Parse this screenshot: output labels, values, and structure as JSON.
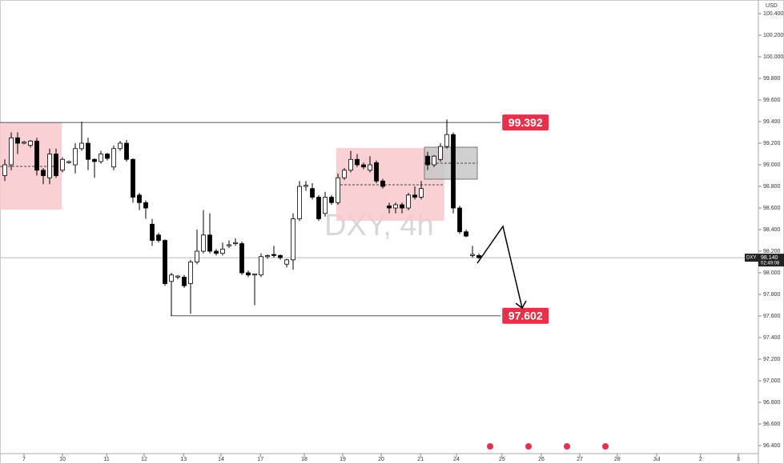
{
  "chart_data": {
    "type": "candlestick",
    "title": "DXY, 4h",
    "currency": "USD",
    "symbol": "DXY",
    "open": [
      98.9,
      99.0,
      99.25,
      99.2,
      99.18,
      99.22,
      98.95,
      98.88,
      99.1,
      98.95,
      99.02,
      99.0,
      99.15,
      99.2,
      99.05,
      99.03,
      99.1,
      98.98,
      99.15,
      99.2,
      99.05,
      98.72,
      98.65,
      98.45,
      98.35,
      98.3,
      97.92,
      97.96,
      97.96,
      97.9,
      98.1,
      98.2,
      98.35,
      98.2,
      98.18,
      98.25,
      98.27,
      98.27,
      98.0,
      97.98,
      97.98,
      98.15,
      98.17,
      98.16,
      98.08,
      98.12,
      98.5,
      98.8,
      98.78,
      98.7,
      98.55,
      98.7,
      98.65,
      98.88,
      98.95,
      99.05,
      99.0,
      98.95,
      99.02,
      98.85,
      98.62,
      98.6,
      98.63,
      98.6,
      98.72,
      98.7,
      99.08,
      99.0,
      99.05,
      99.17,
      99.28,
      98.6,
      98.38,
      98.16,
      98.16
    ],
    "high": [
      99.05,
      99.3,
      99.3,
      99.22,
      99.23,
      99.25,
      98.97,
      99.15,
      99.15,
      99.07,
      99.04,
      99.2,
      99.4,
      99.25,
      99.06,
      99.13,
      99.11,
      99.18,
      99.22,
      99.23,
      99.06,
      98.74,
      98.67,
      98.5,
      98.37,
      98.31,
      98.0,
      97.98,
      97.98,
      98.12,
      98.4,
      98.58,
      98.55,
      98.22,
      98.28,
      98.3,
      98.32,
      98.29,
      98.02,
      97.99,
      98.18,
      98.17,
      98.25,
      98.17,
      98.13,
      98.55,
      98.85,
      98.85,
      98.83,
      98.72,
      98.75,
      98.72,
      98.92,
      98.97,
      99.13,
      99.1,
      99.02,
      99.08,
      99.04,
      98.87,
      98.65,
      98.65,
      98.65,
      98.74,
      98.8,
      98.85,
      99.12,
      99.09,
      99.2,
      99.42,
      99.3,
      98.62,
      98.4,
      98.25,
      98.18
    ],
    "low": [
      98.85,
      98.95,
      99.1,
      99.19,
      99.16,
      98.9,
      98.82,
      98.82,
      98.88,
      98.93,
      99.01,
      98.92,
      99.13,
      98.95,
      98.88,
      99.01,
      99.04,
      98.95,
      99.13,
      99.03,
      98.65,
      98.58,
      98.5,
      98.25,
      98.28,
      97.88,
      97.6,
      97.94,
      97.86,
      97.62,
      98.08,
      98.18,
      98.18,
      98.16,
      98.16,
      98.23,
      98.25,
      97.98,
      97.96,
      97.7,
      97.96,
      98.13,
      98.14,
      98.12,
      98.05,
      98.03,
      98.48,
      98.76,
      98.68,
      98.48,
      98.52,
      98.63,
      98.63,
      98.86,
      98.93,
      98.98,
      98.96,
      98.93,
      98.83,
      98.78,
      98.55,
      98.55,
      98.55,
      98.58,
      98.68,
      98.68,
      98.95,
      98.98,
      99.03,
      99.15,
      98.55,
      98.36,
      98.33,
      98.14,
      98.13
    ],
    "close": [
      99.0,
      99.25,
      99.2,
      99.21,
      99.22,
      98.95,
      98.9,
      99.1,
      98.9,
      99.05,
      99.03,
      99.15,
      99.2,
      99.05,
      99.03,
      99.1,
      99.06,
      99.15,
      99.2,
      99.05,
      98.7,
      98.65,
      98.6,
      98.3,
      98.3,
      97.9,
      97.98,
      97.97,
      97.88,
      98.1,
      98.2,
      98.35,
      98.2,
      98.18,
      98.22,
      98.26,
      98.28,
      98.0,
      97.98,
      97.99,
      98.15,
      98.16,
      98.16,
      98.14,
      98.12,
      98.5,
      98.8,
      98.81,
      98.7,
      98.5,
      98.7,
      98.65,
      98.88,
      98.95,
      99.05,
      99.0,
      98.98,
      99.0,
      98.85,
      98.8,
      98.6,
      98.63,
      98.6,
      98.72,
      98.7,
      98.78,
      99.0,
      99.08,
      99.17,
      99.28,
      98.6,
      98.38,
      98.34,
      98.17,
      98.14
    ],
    "up_color": "#ffffff",
    "down_color": "#000000",
    "xlim": [
      -0.75,
      117.625
    ],
    "xticks": [
      {
        "value": 3,
        "label": "7"
      },
      {
        "value": 9,
        "label": "10"
      },
      {
        "value": 15.9,
        "label": "11"
      },
      {
        "value": 21.75,
        "label": "12"
      },
      {
        "value": 27.9,
        "label": "13"
      },
      {
        "value": 33.75,
        "label": "14"
      },
      {
        "value": 39.9,
        "label": "17"
      },
      {
        "value": 46.75,
        "label": "18"
      },
      {
        "value": 52.75,
        "label": "19"
      },
      {
        "value": 58.75,
        "label": "20"
      },
      {
        "value": 64.9,
        "label": "21"
      },
      {
        "value": 70.5,
        "label": "24"
      },
      {
        "value": 77.6,
        "label": "25"
      },
      {
        "value": 83.75,
        "label": "26"
      },
      {
        "value": 89.75,
        "label": "27"
      },
      {
        "value": 95.6,
        "label": "28"
      },
      {
        "value": 101.75,
        "label": "Jul"
      },
      {
        "value": 108.6,
        "label": "2"
      },
      {
        "value": 114.5,
        "label": "3"
      }
    ],
    "ylim": [
      96.326,
      100.526
    ],
    "yticks": [
      {
        "value": 100.4,
        "label": "100.400"
      },
      {
        "value": 100.2,
        "label": "100.200"
      },
      {
        "value": 100,
        "label": "100.000"
      },
      {
        "value": 99.8,
        "label": "99.800"
      },
      {
        "value": 99.6,
        "label": "99.600"
      },
      {
        "value": 99.4,
        "label": "99.400"
      },
      {
        "value": 99.2,
        "label": "99.200"
      },
      {
        "value": 99,
        "label": "99.000"
      },
      {
        "value": 98.8,
        "label": "98.800"
      },
      {
        "value": 98.6,
        "label": "98.600"
      },
      {
        "value": 98.4,
        "label": "98.400"
      },
      {
        "value": 98.2,
        "label": "98.200"
      },
      {
        "value": 98,
        "label": "98.000"
      },
      {
        "value": 97.8,
        "label": "97.800"
      },
      {
        "value": 97.6,
        "label": "97.600"
      },
      {
        "value": 97.4,
        "label": "97.400"
      },
      {
        "value": 97.2,
        "label": "97.200"
      },
      {
        "value": 97,
        "label": "97.000"
      },
      {
        "value": 96.8,
        "label": "96.800"
      },
      {
        "value": 96.6,
        "label": "96.600"
      },
      {
        "value": 96.4,
        "label": "96.400"
      }
    ],
    "levels": [
      {
        "value": 99.392,
        "x": [
          -0.75,
          77.4
        ]
      },
      {
        "value": 97.602,
        "x": [
          25.9,
          77.4
        ]
      }
    ],
    "level_color": "#e8304a",
    "last_price": {
      "value": 98.14,
      "label": "98.140"
    },
    "countdown": "02:49:08",
    "zones": [
      {
        "x": [
          -0.75,
          8.9
        ],
        "y": [
          98.585,
          99.393
        ],
        "mid": 98.985,
        "color": "#f8c8cc"
      },
      {
        "x": [
          51.75,
          68.6
        ],
        "y": [
          98.481,
          99.156
        ],
        "mid": 98.815,
        "color": "#f8c8cc"
      },
      {
        "x": [
          65.5,
          73.75
        ],
        "y": [
          98.867,
          99.163
        ],
        "mid": 99.015,
        "color": "#c8c8c8"
      }
    ],
    "projection": {
      "x": [
        73.75,
        77.75,
        80.75
      ],
      "y": [
        98.089,
        98.43,
        97.674
      ]
    }
  }
}
